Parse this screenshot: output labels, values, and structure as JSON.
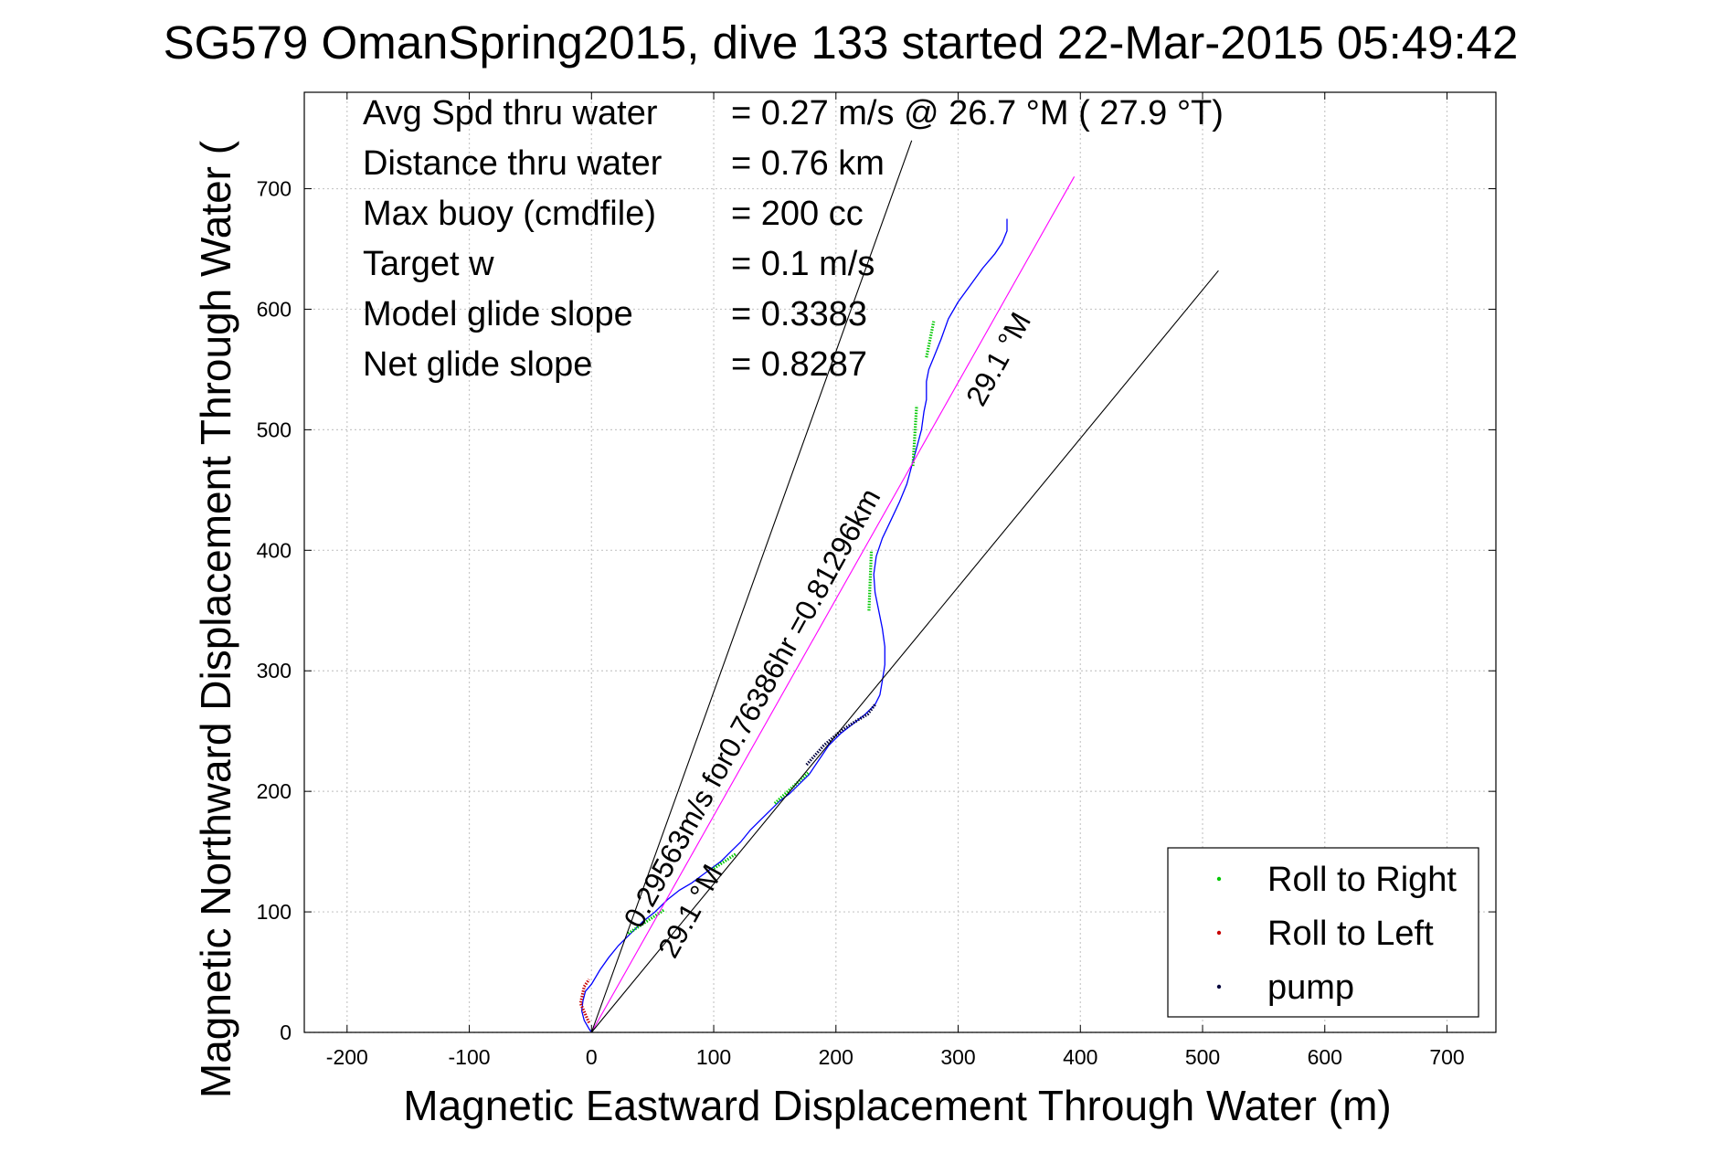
{
  "chart_data": {
    "type": "line",
    "title": "SG579 OmanSpring2015, dive 133 started 22-Mar-2015 05:49:42",
    "xlabel": "Magnetic Eastward Displacement Through Water (m)",
    "ylabel": "Magnetic Northward Displacement Through Water (m)",
    "ylabel_visible": "Magnetic Northward Displacement Through Water (",
    "xlim": [
      -235,
      740
    ],
    "ylim": [
      0,
      780
    ],
    "xticks": [
      -200,
      -100,
      0,
      100,
      200,
      300,
      400,
      500,
      600,
      700
    ],
    "yticks": [
      0,
      100,
      200,
      300,
      400,
      500,
      600,
      700
    ],
    "grid": true,
    "legend_position": "bottom-right",
    "stats": [
      {
        "label": "Avg Spd thru water",
        "value": "=  0.27 m/s @  26.7 °M ( 27.9 °T)"
      },
      {
        "label": "Distance thru water",
        "value": "=  0.76 km"
      },
      {
        "label": "Max buoy (cmdfile)",
        "value": "= 200 cc"
      },
      {
        "label": "Target w",
        "value": "= 0.1 m/s"
      },
      {
        "label": "Model glide slope",
        "value": "= 0.3383"
      },
      {
        "label": "Net glide slope",
        "value": "= 0.8287"
      }
    ],
    "annotations": [
      {
        "text": "0.29563m/s for0.76386hr =0.81296km",
        "x": 40,
        "y": 85,
        "angle": -61
      },
      {
        "text": "29.1 °M",
        "x": 68,
        "y": 60,
        "angle": -61
      },
      {
        "text": "29.1 °M",
        "x": 320,
        "y": 518,
        "angle": -61
      }
    ],
    "series": [
      {
        "name": "track",
        "color": "#0000ff",
        "points": [
          [
            0,
            0
          ],
          [
            -2,
            3
          ],
          [
            -6,
            10
          ],
          [
            -8,
            18
          ],
          [
            -7,
            26
          ],
          [
            -5,
            34
          ],
          [
            0,
            40
          ],
          [
            7,
            52
          ],
          [
            14,
            62
          ],
          [
            22,
            72
          ],
          [
            32,
            82
          ],
          [
            42,
            92
          ],
          [
            52,
            100
          ],
          [
            62,
            110
          ],
          [
            72,
            118
          ],
          [
            82,
            124
          ],
          [
            90,
            130
          ],
          [
            98,
            136
          ],
          [
            106,
            142
          ],
          [
            114,
            150
          ],
          [
            122,
            158
          ],
          [
            130,
            168
          ],
          [
            138,
            176
          ],
          [
            146,
            184
          ],
          [
            154,
            192
          ],
          [
            162,
            198
          ],
          [
            170,
            206
          ],
          [
            178,
            214
          ],
          [
            186,
            226
          ],
          [
            194,
            238
          ],
          [
            204,
            248
          ],
          [
            214,
            256
          ],
          [
            224,
            264
          ],
          [
            232,
            272
          ],
          [
            236,
            280
          ],
          [
            238,
            292
          ],
          [
            240,
            305
          ],
          [
            240,
            320
          ],
          [
            238,
            335
          ],
          [
            235,
            350
          ],
          [
            232,
            365
          ],
          [
            231,
            380
          ],
          [
            233,
            395
          ],
          [
            238,
            410
          ],
          [
            245,
            425
          ],
          [
            252,
            440
          ],
          [
            258,
            455
          ],
          [
            262,
            470
          ],
          [
            266,
            485
          ],
          [
            270,
            500
          ],
          [
            272,
            515
          ],
          [
            274,
            525
          ],
          [
            274,
            540
          ],
          [
            276,
            550
          ],
          [
            280,
            560
          ],
          [
            286,
            575
          ],
          [
            292,
            592
          ],
          [
            300,
            606
          ],
          [
            310,
            620
          ],
          [
            320,
            634
          ],
          [
            330,
            646
          ],
          [
            336,
            655
          ],
          [
            340,
            665
          ],
          [
            340,
            675
          ]
        ]
      },
      {
        "name": "Roll to Right",
        "color": "#00c800",
        "marker": "dot",
        "segments": [
          [
            [
              30,
              82
            ],
            [
              60,
              102
            ]
          ],
          [
            [
              100,
              136
            ],
            [
              118,
              148
            ]
          ],
          [
            [
              150,
              190
            ],
            [
              178,
              216
            ]
          ],
          [
            [
              227,
              350
            ],
            [
              229,
              400
            ]
          ],
          [
            [
              263,
              470
            ],
            [
              266,
              520
            ]
          ],
          [
            [
              274,
              560
            ],
            [
              280,
              590
            ]
          ]
        ]
      },
      {
        "name": "Roll to Left",
        "color": "#c80000",
        "marker": "dot",
        "segments": [
          [
            [
              -2,
              8
            ],
            [
              -9,
              24
            ],
            [
              -6,
              38
            ],
            [
              -2,
              44
            ]
          ]
        ]
      },
      {
        "name": "pump",
        "color": "#00003c",
        "marker": "dot",
        "segments": [
          [
            [
              176,
              222
            ],
            [
              190,
              238
            ],
            [
              204,
              250
            ],
            [
              216,
              258
            ],
            [
              226,
              264
            ],
            [
              232,
              272
            ]
          ]
        ]
      },
      {
        "name": "heading line",
        "color": "#ff00ff",
        "points": [
          [
            0,
            0
          ],
          [
            395,
            710
          ]
        ]
      },
      {
        "name": "envelope",
        "color": "#000000",
        "points": [
          [
            0,
            0
          ],
          [
            262,
            740
          ]
        ]
      },
      {
        "name": "envelope",
        "color": "#000000",
        "points": [
          [
            0,
            0
          ],
          [
            513,
            632
          ]
        ]
      }
    ],
    "legend": [
      {
        "label": "Roll to Right",
        "color": "#00c800"
      },
      {
        "label": "Roll to Left",
        "color": "#c80000"
      },
      {
        "label": "pump",
        "color": "#00003c"
      }
    ]
  }
}
